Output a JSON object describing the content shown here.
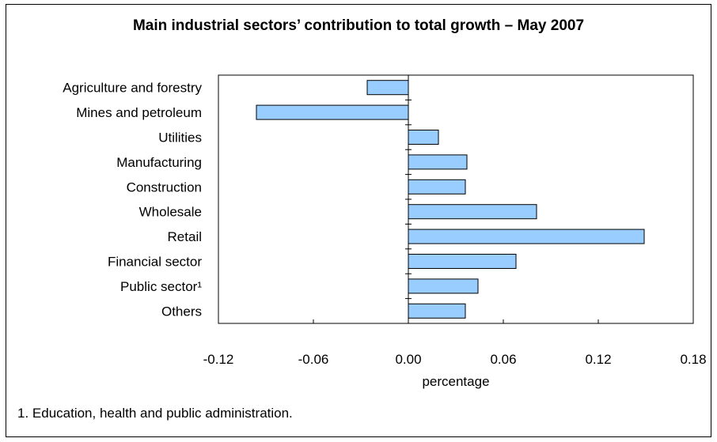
{
  "chart_data": {
    "type": "bar",
    "orientation": "horizontal",
    "title": "Main industrial sectors’ contribution to total growth – May 2007",
    "xlabel": "percentage",
    "ylabel": "",
    "categories": [
      "Agriculture and forestry",
      "Mines and petroleum",
      "Utilities",
      "Manufacturing",
      "Construction",
      "Wholesale",
      "Retail",
      "Financial sector",
      "Public sector¹",
      "Others"
    ],
    "values": [
      -0.026,
      -0.096,
      0.019,
      0.037,
      0.036,
      0.081,
      0.149,
      0.068,
      0.044,
      0.036
    ],
    "xlim": [
      -0.12,
      0.18
    ],
    "xticks": [
      -0.12,
      -0.06,
      0.0,
      0.06,
      0.12,
      0.18
    ],
    "xtick_labels": [
      "-0.12",
      "-0.06",
      "0.00",
      "0.06",
      "0.12",
      "0.18"
    ],
    "grid": false,
    "legend": "none",
    "bar_color": "#99ccff",
    "footnote": "1. Education, health and public administration."
  }
}
